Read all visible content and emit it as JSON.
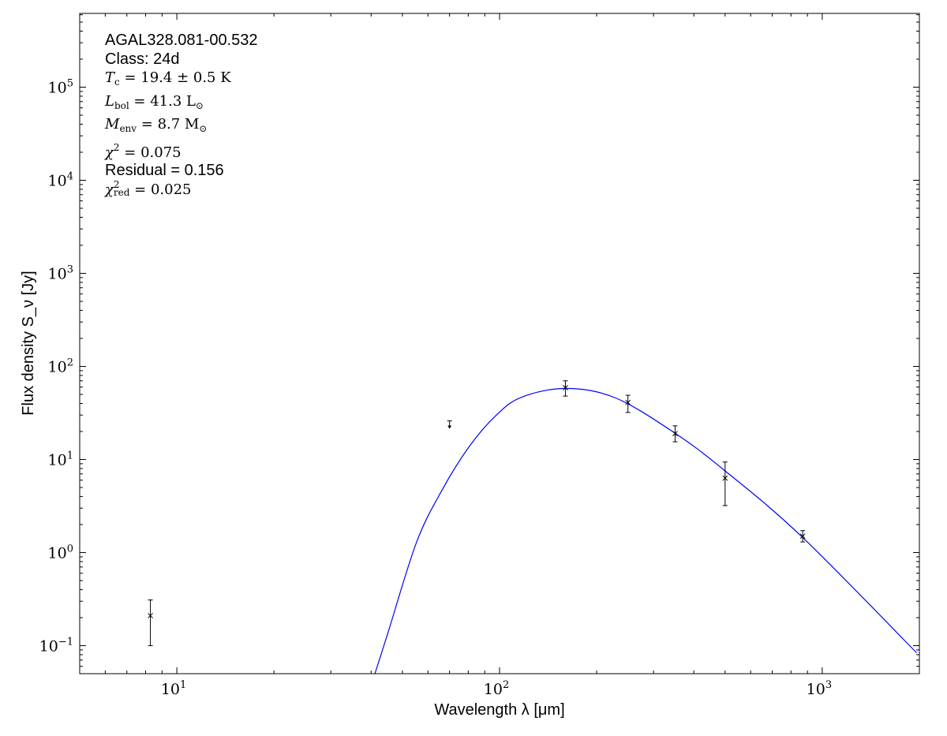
{
  "chart_data": {
    "type": "scatter",
    "xscale": "log",
    "yscale": "log",
    "xlim": [
      5,
      2000
    ],
    "ylim": [
      0.05,
      620000
    ],
    "xlabel": "Wavelength λ [μm]",
    "ylabel": "Flux density S_ν [Jy]",
    "xticks": [
      10,
      100,
      1000
    ],
    "xtick_labels": [
      "10",
      "10",
      "10"
    ],
    "xtick_exponents": [
      "1",
      "2",
      "3"
    ],
    "yticks": [
      0.1,
      1,
      10,
      100,
      1000,
      10000,
      100000
    ],
    "ytick_labels": [
      "10",
      "10",
      "10",
      "10",
      "10",
      "10",
      "10"
    ],
    "ytick_exponents": [
      "−1",
      "0",
      "1",
      "2",
      "3",
      "4",
      "5"
    ],
    "grid": false,
    "points": [
      {
        "x": 8.28,
        "y": 0.21,
        "ylo": 0.1,
        "yhi": 0.31
      },
      {
        "x": 160,
        "y": 59,
        "ylo": 48,
        "yhi": 70
      },
      {
        "x": 250,
        "y": 41,
        "ylo": 32,
        "yhi": 49
      },
      {
        "x": 350,
        "y": 19,
        "ylo": 15.5,
        "yhi": 23
      },
      {
        "x": 500,
        "y": 6.3,
        "ylo": 3.2,
        "yhi": 9.4
      },
      {
        "x": 870,
        "y": 1.5,
        "ylo": 1.3,
        "yhi": 1.72
      }
    ],
    "upper_limits": [
      {
        "x": 70,
        "y": 26
      }
    ],
    "model": {
      "color": "#0000ff",
      "x": [
        41.1,
        45,
        55.3,
        66.5,
        80.1,
        97,
        117,
        161,
        229,
        348,
        495,
        865,
        1960
      ],
      "y": [
        0.05,
        0.134,
        1.29,
        4.76,
        13.4,
        29.2,
        46.7,
        58,
        45.8,
        19.4,
        7.76,
        1.48,
        0.084
      ]
    },
    "marker_color": "#000000"
  },
  "annotation": {
    "source": "AGAL328.081-00.532",
    "class": "Class: 24d",
    "tc_sym": "T",
    "tc_sub": "c",
    "tc_val": " = 19.4 ± 0.5 K",
    "lbol_sym": "L",
    "lbol_sub": "bol",
    "lbol_val": " = 41.3 L",
    "lbol_unit_sub": "⊙",
    "menv_sym": "M",
    "menv_sub": "env",
    "menv_val": " = 8.7 M",
    "menv_unit_sub": "⊙",
    "chi2_sym": "χ",
    "chi2_sup": "2",
    "chi2_val": " = 0.075",
    "residual": "Residual = 0.156",
    "chi2red_sym": "χ",
    "chi2red_sup": "2",
    "chi2red_sub": "red",
    "chi2red_val": " = 0.025"
  }
}
